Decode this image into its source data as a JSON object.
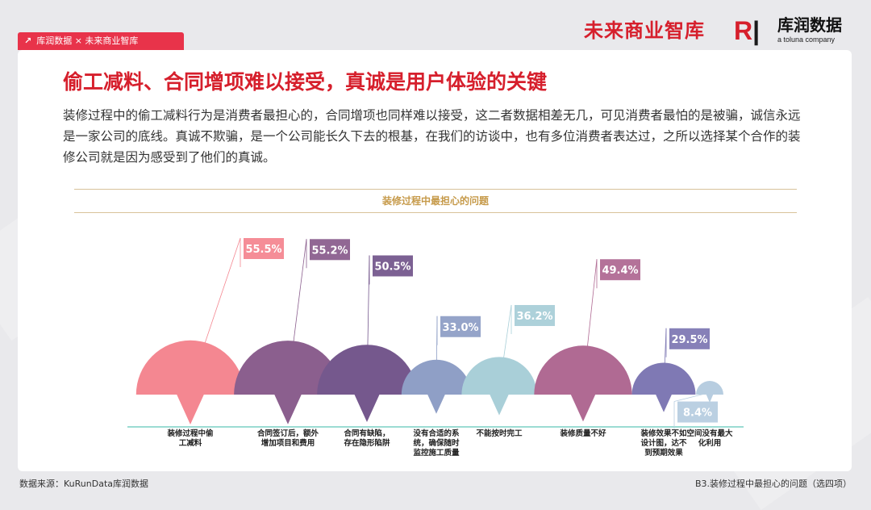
{
  "header": {
    "tag_text": "库润数据 × 未来商业智库",
    "tag_icon": "arrow-up-right-icon",
    "brand_left": "未来商业智库",
    "brand_right_cn": "库润数据",
    "brand_right_en": "a toluna company"
  },
  "page": {
    "title": "偷工减料、合同增项难以接受，真诚是用户体验的关键",
    "paragraph": "装修过程中的偷工减料行为是消费者最担心的，合同增项也同样难以接受，这二者数据相差无几，可见消费者最怕的是被骗，诚信永远是一家公司的底线。真诚不欺骗，是一个公司能长久下去的根基，在我们的访谈中，也有多位消费者表达过，之所以选择某个合作的装修公司就是因为感受到了他们的真诚。"
  },
  "footer": {
    "source": "数据来源：KuRunData库润数据",
    "question": "B3.装修过程中最担心的问题（选四项）"
  },
  "colors": {
    "accent": "#d61f2c",
    "tag_bg": "#e8334a",
    "gold": "#c69a4a",
    "baseline": "#5fc7b9"
  },
  "chart_data": {
    "type": "bar",
    "title": "装修过程中最担心的问题",
    "categories": [
      [
        "装修过程中偷",
        "工减料"
      ],
      [
        "合同签订后，额外",
        "增加项目和费用"
      ],
      [
        "合同有缺陷，",
        "存在隐形陷阱"
      ],
      [
        "没有合适的系",
        "统，确保随时",
        "监控施工质量"
      ],
      [
        "不能按时完工"
      ],
      [
        "装修质量不好"
      ],
      [
        "装修效果不如",
        "设计图，达不",
        "到预期效果"
      ],
      [
        "空间没有最大",
        "化利用"
      ]
    ],
    "values": [
      55.5,
      55.2,
      50.5,
      33.0,
      36.2,
      49.4,
      29.5,
      8.4
    ],
    "labels": [
      "55.5%",
      "55.2%",
      "50.5%",
      "33.0%",
      "36.2%",
      "49.4%",
      "29.5%",
      "8.4%"
    ],
    "colors": [
      "#f48791",
      "#8b5f8e",
      "#75588d",
      "#8f9fc6",
      "#a9cfd8",
      "#b06a93",
      "#7f79b4",
      "#b7cde0"
    ],
    "label_bg": [
      "#f48791",
      "#8b5f8e",
      "#75588d",
      "#8f9fc6",
      "#a9cfd8",
      "#b06a93",
      "#7f79b4",
      "#b7cde0"
    ],
    "ylim": [
      0,
      60
    ]
  }
}
